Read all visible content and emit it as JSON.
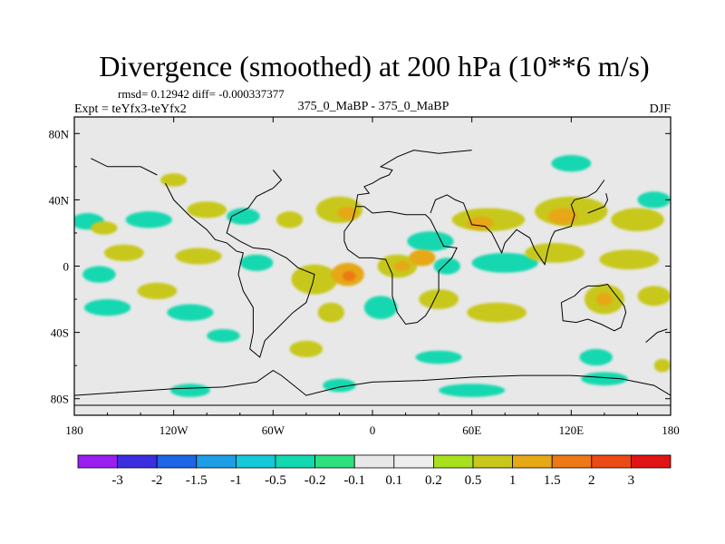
{
  "chart_data": {
    "type": "heatmap",
    "title": "Divergence (smoothed) at 200 hPa (10**6 m/s)",
    "stats": "rmsd= 0.12942  diff= -0.000337377",
    "experiment": "Expt = teYfx3-teYfx2",
    "case": "375_0_MaBP - 375_0_MaBP",
    "season": "DJF",
    "x_range": [
      -180,
      180
    ],
    "y_range": [
      -90,
      90
    ],
    "x_ticks": [
      {
        "value": -180,
        "label": "180"
      },
      {
        "value": -120,
        "label": "120W"
      },
      {
        "value": -60,
        "label": "60W"
      },
      {
        "value": 0,
        "label": "0"
      },
      {
        "value": 60,
        "label": "60E"
      },
      {
        "value": 120,
        "label": "120E"
      },
      {
        "value": 180,
        "label": "180"
      }
    ],
    "y_ticks": [
      {
        "value": 80,
        "label": "80N"
      },
      {
        "value": 40,
        "label": "40N"
      },
      {
        "value": 0,
        "label": "0"
      },
      {
        "value": -40,
        "label": "40S"
      },
      {
        "value": -80,
        "label": "80S"
      }
    ],
    "colorbar": {
      "labels": [
        "-3",
        "-2",
        "-1.5",
        "-1",
        "-0.5",
        "-0.2",
        "-0.1",
        "0.1",
        "0.2",
        "0.5",
        "1",
        "1.5",
        "2",
        "3"
      ],
      "colors": [
        "#9a1ef0",
        "#3a2ee0",
        "#1e64e6",
        "#1e9ee6",
        "#14c8d8",
        "#12d8b0",
        "#2ee07e",
        "#eeeeee",
        "#a8e01e",
        "#c8c81a",
        "#e6a814",
        "#ee7814",
        "#ec4a14",
        "#e01414"
      ]
    },
    "no_data_fill": "#e8e8e8",
    "regions": [
      {
        "lon": -172,
        "lat": 27,
        "rx": 10,
        "ry": 5,
        "value": -0.2
      },
      {
        "lon": -135,
        "lat": 28,
        "rx": 14,
        "ry": 5,
        "value": -0.2
      },
      {
        "lon": -162,
        "lat": 23,
        "rx": 8,
        "ry": 4,
        "value": 0.2
      },
      {
        "lon": -100,
        "lat": 34,
        "rx": 12,
        "ry": 5,
        "value": 0.2
      },
      {
        "lon": -78,
        "lat": 30,
        "rx": 10,
        "ry": 5,
        "value": -0.2
      },
      {
        "lon": -50,
        "lat": 28,
        "rx": 8,
        "ry": 5,
        "value": 0.2
      },
      {
        "lon": -20,
        "lat": 34,
        "rx": 14,
        "ry": 8,
        "value": 0.2
      },
      {
        "lon": -15,
        "lat": 32,
        "rx": 6,
        "ry": 4,
        "value": 0.5
      },
      {
        "lon": 35,
        "lat": 15,
        "rx": 14,
        "ry": 6,
        "value": -0.2
      },
      {
        "lon": 70,
        "lat": 28,
        "rx": 22,
        "ry": 7,
        "value": 0.2
      },
      {
        "lon": 65,
        "lat": 26,
        "rx": 8,
        "ry": 4,
        "value": 0.5
      },
      {
        "lon": 120,
        "lat": 33,
        "rx": 22,
        "ry": 9,
        "value": 0.2
      },
      {
        "lon": 115,
        "lat": 30,
        "rx": 9,
        "ry": 5,
        "value": 0.5
      },
      {
        "lon": 160,
        "lat": 28,
        "rx": 16,
        "ry": 7,
        "value": 0.2
      },
      {
        "lon": 170,
        "lat": 40,
        "rx": 10,
        "ry": 5,
        "value": -0.2
      },
      {
        "lon": 120,
        "lat": 62,
        "rx": 12,
        "ry": 5,
        "value": -0.2
      },
      {
        "lon": -120,
        "lat": 52,
        "rx": 8,
        "ry": 4,
        "value": 0.2
      },
      {
        "lon": -150,
        "lat": 8,
        "rx": 12,
        "ry": 5,
        "value": 0.2
      },
      {
        "lon": -105,
        "lat": 6,
        "rx": 14,
        "ry": 5,
        "value": 0.2
      },
      {
        "lon": -70,
        "lat": 2,
        "rx": 10,
        "ry": 5,
        "value": -0.2
      },
      {
        "lon": -35,
        "lat": -8,
        "rx": 14,
        "ry": 9,
        "value": 0.2
      },
      {
        "lon": -15,
        "lat": -5,
        "rx": 10,
        "ry": 7,
        "value": 0.5
      },
      {
        "lon": -14,
        "lat": -6,
        "rx": 4,
        "ry": 3,
        "value": 1
      },
      {
        "lon": 15,
        "lat": 0,
        "rx": 12,
        "ry": 7,
        "value": 0.2
      },
      {
        "lon": 18,
        "lat": 0,
        "rx": 5,
        "ry": 3,
        "value": 0.5
      },
      {
        "lon": 30,
        "lat": 5,
        "rx": 8,
        "ry": 5,
        "value": 0.5
      },
      {
        "lon": 45,
        "lat": 0,
        "rx": 8,
        "ry": 5,
        "value": -0.2
      },
      {
        "lon": 80,
        "lat": 2,
        "rx": 20,
        "ry": 6,
        "value": -0.2
      },
      {
        "lon": 110,
        "lat": 8,
        "rx": 18,
        "ry": 6,
        "value": 0.2
      },
      {
        "lon": 155,
        "lat": 4,
        "rx": 18,
        "ry": 6,
        "value": 0.2
      },
      {
        "lon": -165,
        "lat": -5,
        "rx": 10,
        "ry": 5,
        "value": -0.2
      },
      {
        "lon": -130,
        "lat": -15,
        "rx": 12,
        "ry": 5,
        "value": 0.2
      },
      {
        "lon": -160,
        "lat": -25,
        "rx": 14,
        "ry": 5,
        "value": -0.2
      },
      {
        "lon": -110,
        "lat": -28,
        "rx": 14,
        "ry": 5,
        "value": -0.2
      },
      {
        "lon": -25,
        "lat": -28,
        "rx": 8,
        "ry": 6,
        "value": 0.2
      },
      {
        "lon": 5,
        "lat": -25,
        "rx": 10,
        "ry": 7,
        "value": -0.2
      },
      {
        "lon": 40,
        "lat": -20,
        "rx": 12,
        "ry": 6,
        "value": 0.2
      },
      {
        "lon": 75,
        "lat": -28,
        "rx": 18,
        "ry": 6,
        "value": 0.2
      },
      {
        "lon": 140,
        "lat": -20,
        "rx": 12,
        "ry": 9,
        "value": 0.2
      },
      {
        "lon": 140,
        "lat": -20,
        "rx": 5,
        "ry": 4,
        "value": 0.5
      },
      {
        "lon": 170,
        "lat": -18,
        "rx": 10,
        "ry": 6,
        "value": 0.2
      },
      {
        "lon": -40,
        "lat": -50,
        "rx": 10,
        "ry": 5,
        "value": 0.2
      },
      {
        "lon": -90,
        "lat": -42,
        "rx": 10,
        "ry": 4,
        "value": -0.2
      },
      {
        "lon": 40,
        "lat": -55,
        "rx": 14,
        "ry": 4,
        "value": -0.2
      },
      {
        "lon": 135,
        "lat": -55,
        "rx": 10,
        "ry": 5,
        "value": -0.2
      },
      {
        "lon": -110,
        "lat": -75,
        "rx": 12,
        "ry": 4,
        "value": -0.2
      },
      {
        "lon": -20,
        "lat": -72,
        "rx": 10,
        "ry": 4,
        "value": -0.2
      },
      {
        "lon": 60,
        "lat": -75,
        "rx": 20,
        "ry": 4,
        "value": -0.2
      },
      {
        "lon": 140,
        "lat": -68,
        "rx": 14,
        "ry": 4,
        "value": -0.2
      },
      {
        "lon": 175,
        "lat": -60,
        "rx": 5,
        "ry": 4,
        "value": 0.2
      }
    ],
    "coastlines": [
      [
        [
          -125,
          50
        ],
        [
          -120,
          40
        ],
        [
          -110,
          30
        ],
        [
          -100,
          22
        ],
        [
          -95,
          16
        ],
        [
          -88,
          14
        ],
        [
          -82,
          9
        ],
        [
          -78,
          8
        ],
        [
          -80,
          0
        ],
        [
          -81,
          -5
        ],
        [
          -78,
          -15
        ],
        [
          -72,
          -25
        ],
        [
          -72,
          -40
        ],
        [
          -74,
          -50
        ],
        [
          -68,
          -55
        ],
        [
          -65,
          -45
        ],
        [
          -58,
          -38
        ],
        [
          -48,
          -28
        ],
        [
          -40,
          -22
        ],
        [
          -36,
          -10
        ],
        [
          -35,
          -5
        ],
        [
          -45,
          -1
        ],
        [
          -52,
          5
        ],
        [
          -62,
          10
        ],
        [
          -72,
          11
        ],
        [
          -80,
          15
        ],
        [
          -88,
          20
        ],
        [
          -85,
          30
        ],
        [
          -75,
          35
        ],
        [
          -70,
          42
        ],
        [
          -60,
          47
        ],
        [
          -55,
          52
        ],
        [
          -60,
          58
        ]
      ],
      [
        [
          -10,
          36
        ],
        [
          -5,
          36
        ],
        [
          0,
          32
        ],
        [
          10,
          33
        ],
        [
          20,
          31
        ],
        [
          32,
          31
        ],
        [
          35,
          28
        ],
        [
          43,
          12
        ],
        [
          51,
          11
        ],
        [
          48,
          5
        ],
        [
          40,
          -3
        ],
        [
          40,
          -15
        ],
        [
          35,
          -25
        ],
        [
          32,
          -30
        ],
        [
          27,
          -34
        ],
        [
          20,
          -35
        ],
        [
          15,
          -28
        ],
        [
          12,
          -18
        ],
        [
          12,
          -5
        ],
        [
          8,
          4
        ],
        [
          0,
          5
        ],
        [
          -8,
          5
        ],
        [
          -15,
          10
        ],
        [
          -17,
          15
        ],
        [
          -17,
          21
        ],
        [
          -12,
          28
        ],
        [
          -10,
          36
        ]
      ],
      [
        [
          -10,
          36
        ],
        [
          -9,
          43
        ],
        [
          -2,
          44
        ],
        [
          -5,
          48
        ],
        [
          0,
          50
        ],
        [
          5,
          53
        ],
        [
          10,
          55
        ],
        [
          12,
          58
        ],
        [
          5,
          60
        ],
        [
          15,
          66
        ],
        [
          25,
          70
        ],
        [
          40,
          68
        ],
        [
          60,
          70
        ]
      ],
      [
        [
          35,
          32
        ],
        [
          38,
          40
        ],
        [
          45,
          43
        ],
        [
          50,
          40
        ],
        [
          55,
          38
        ],
        [
          60,
          25
        ],
        [
          68,
          24
        ],
        [
          72,
          20
        ],
        [
          78,
          8
        ],
        [
          80,
          14
        ],
        [
          87,
          22
        ],
        [
          95,
          17
        ],
        [
          98,
          10
        ],
        [
          104,
          1
        ],
        [
          106,
          10
        ],
        [
          108,
          17
        ],
        [
          110,
          21
        ],
        [
          120,
          24
        ],
        [
          122,
          31
        ],
        [
          120,
          37
        ],
        [
          122,
          40
        ],
        [
          130,
          42
        ],
        [
          135,
          45
        ],
        [
          140,
          52
        ]
      ],
      [
        [
          114,
          -22
        ],
        [
          115,
          -33
        ],
        [
          123,
          -34
        ],
        [
          130,
          -32
        ],
        [
          138,
          -35
        ],
        [
          146,
          -39
        ],
        [
          150,
          -37
        ],
        [
          153,
          -28
        ],
        [
          152,
          -24
        ],
        [
          145,
          -15
        ],
        [
          142,
          -11
        ],
        [
          137,
          -12
        ],
        [
          130,
          -12
        ],
        [
          126,
          -14
        ],
        [
          122,
          -18
        ],
        [
          114,
          -22
        ]
      ],
      [
        [
          -180,
          -78
        ],
        [
          -150,
          -76
        ],
        [
          -120,
          -74
        ],
        [
          -90,
          -73
        ],
        [
          -70,
          -70
        ],
        [
          -60,
          -63
        ],
        [
          -55,
          -66
        ],
        [
          -40,
          -78
        ],
        [
          -20,
          -73
        ],
        [
          0,
          -70
        ],
        [
          30,
          -69
        ],
        [
          60,
          -67
        ],
        [
          90,
          -66
        ],
        [
          120,
          -66
        ],
        [
          150,
          -68
        ],
        [
          170,
          -72
        ],
        [
          180,
          -78
        ]
      ],
      [
        [
          -180,
          -84
        ],
        [
          180,
          -84
        ]
      ],
      [
        [
          165,
          -46
        ],
        [
          172,
          -40
        ],
        [
          178,
          -38
        ]
      ],
      [
        [
          130,
          32
        ],
        [
          135,
          34
        ],
        [
          140,
          36
        ],
        [
          142,
          40
        ],
        [
          141,
          44
        ]
      ],
      [
        [
          -170,
          65
        ],
        [
          -160,
          60
        ],
        [
          -150,
          60
        ],
        [
          -140,
          60
        ],
        [
          -130,
          55
        ]
      ]
    ]
  }
}
